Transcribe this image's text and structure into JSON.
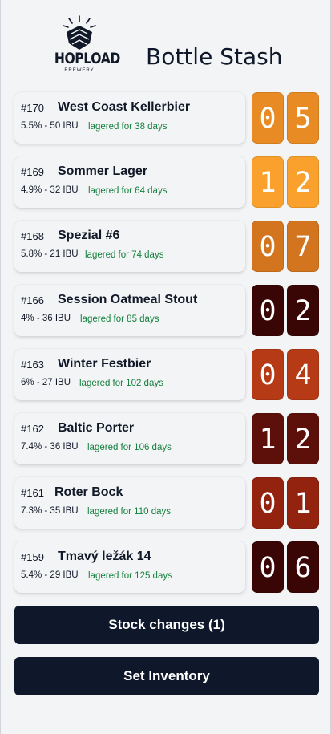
{
  "header": {
    "logo_text": "HOPLOAD",
    "logo_sub": "BREWERY",
    "title": "Bottle Stash"
  },
  "beers": [
    {
      "number": "#170",
      "name": "West Coast Kellerbier",
      "meta": "5.5% - 50 IBU",
      "lagered": "lagered for 38 days",
      "digits": [
        "0",
        "5"
      ],
      "color": "#e88b24"
    },
    {
      "number": "#169",
      "name": "Sommer Lager",
      "meta": "4.9% - 32 IBU",
      "lagered": "lagered for 64 days",
      "digits": [
        "1",
        "2"
      ],
      "color": "#f9a12c"
    },
    {
      "number": "#168",
      "name": "Spezial #6",
      "meta": "5.8% - 21 IBU",
      "lagered": "lagered for 74 days",
      "digits": [
        "0",
        "7"
      ],
      "color": "#d3741e"
    },
    {
      "number": "#166",
      "name": "Session Oatmeal Stout",
      "meta": "4% - 36 IBU",
      "lagered": "lagered for 85 days",
      "digits": [
        "0",
        "2"
      ],
      "color": "#3a0505"
    },
    {
      "number": "#163",
      "name": "Winter Festbier",
      "meta": "6% - 27 IBU",
      "lagered": "lagered for 102 days",
      "digits": [
        "0",
        "4"
      ],
      "color": "#b63a16"
    },
    {
      "number": "#162",
      "name": "Baltic Porter",
      "meta": "7.4% - 36 IBU",
      "lagered": "lagered for 106 days",
      "digits": [
        "1",
        "2"
      ],
      "color": "#5d1009"
    },
    {
      "number": "#161",
      "name": "Roter Bock",
      "meta": "7.3% - 35 IBU",
      "lagered": "lagered for 110 days",
      "digits": [
        "0",
        "1"
      ],
      "color": "#93220f"
    },
    {
      "number": "#159",
      "name": "Tmavý ležák 14",
      "meta": "5.4% - 29 IBU",
      "lagered": "lagered for 125 days",
      "digits": [
        "0",
        "6"
      ],
      "color": "#3a0505"
    }
  ],
  "buttons": {
    "stock_changes": "Stock changes (1)",
    "set_inventory": "Set Inventory"
  }
}
